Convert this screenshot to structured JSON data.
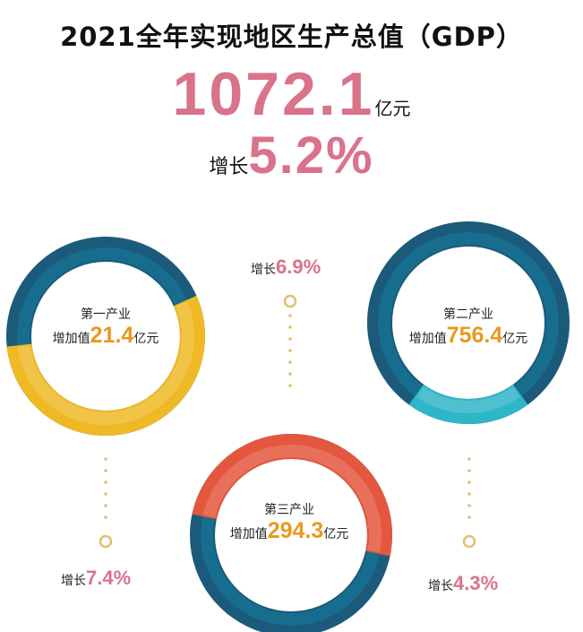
{
  "title": "2021全年实现地区生产总值（GDP）",
  "total": {
    "value": "1072.1",
    "unit": "亿元"
  },
  "growth": {
    "label": "增长",
    "value": "5.2%"
  },
  "chart_data": {
    "type": "donut",
    "total_gdp": 1072.1,
    "unit": "亿元",
    "items": [
      {
        "name": "第一产业",
        "prefix": "增加值",
        "value": "21.4",
        "unit": "亿元",
        "growth_label": "增长",
        "growth": "7.4%",
        "highlight_fraction": 0.55,
        "base_color": "#1b5a7a",
        "highlight_color": "#efb926"
      },
      {
        "name": "第二产业",
        "prefix": "增加值",
        "value": "756.4",
        "unit": "亿元",
        "growth_label": "增长",
        "growth": "6.9%",
        "highlight_fraction": 0.2,
        "base_color": "#1b5a7a",
        "highlight_color": "#2fb5c8"
      },
      {
        "name": "第三产业",
        "prefix": "增加值",
        "value": "294.3",
        "unit": "亿元",
        "growth_label": "增长",
        "growth": "4.3%",
        "highlight_fraction": 0.5,
        "base_color": "#1b5a7a",
        "highlight_color": "#e4573e"
      }
    ]
  },
  "colors": {
    "accent_pink": "#d9738a",
    "value_orange": "#e8991e",
    "connector": "#e0c070"
  }
}
